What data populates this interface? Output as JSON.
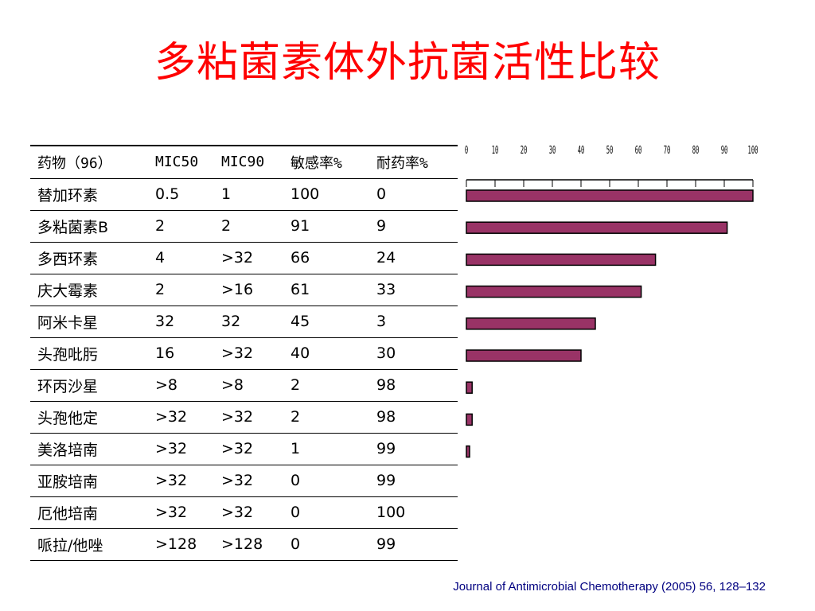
{
  "title": "多粘菌素体外抗菌活性比较",
  "table": {
    "headers": [
      "药物（96）",
      "MIC50",
      "MIC90",
      "敏感率%",
      "耐药率%"
    ],
    "rows": [
      [
        "替加环素",
        "0.5",
        "1",
        "100",
        "0"
      ],
      [
        "多粘菌素B",
        "2",
        "2",
        "91",
        "9"
      ],
      [
        "多西环素",
        "4",
        ">32",
        "66",
        "24"
      ],
      [
        "庆大霉素",
        "2",
        ">16",
        "61",
        "33"
      ],
      [
        "阿米卡星",
        "32",
        "32",
        "45",
        "3"
      ],
      [
        "头孢吡肟",
        "16",
        ">32",
        "40",
        "30"
      ],
      [
        "环丙沙星",
        ">8",
        ">8",
        "2",
        "98"
      ],
      [
        "头孢他定",
        ">32",
        ">32",
        "2",
        "98"
      ],
      [
        "美洛培南",
        ">32",
        ">32",
        "1",
        "99"
      ],
      [
        "亚胺培南",
        ">32",
        ">32",
        "0",
        "99"
      ],
      [
        "厄他培南",
        ">32",
        ">32",
        "0",
        "100"
      ],
      [
        "哌拉/他唑",
        ">128",
        ">128",
        "0",
        "99"
      ]
    ]
  },
  "chart_data": {
    "type": "bar",
    "orientation": "horizontal",
    "categories": [
      "替加环素",
      "多粘菌素B",
      "多西环素",
      "庆大霉素",
      "阿米卡星",
      "头孢吡肟",
      "环丙沙星",
      "头孢他定",
      "美洛培南",
      "亚胺培南",
      "厄他培南",
      "哌拉/他唑"
    ],
    "values": [
      100,
      91,
      66,
      61,
      45,
      40,
      2,
      2,
      1,
      0,
      0,
      0
    ],
    "xlim": [
      0,
      100
    ],
    "xticks": [
      "0",
      "10",
      "20",
      "30",
      "40",
      "50",
      "60",
      "70",
      "80",
      "90",
      "100"
    ],
    "axis_position": "top",
    "bar_color": "#993366",
    "bar_border": "#000000"
  },
  "citation": "Journal of Antimicrobial Chemotherapy (2005) 56, 128–132"
}
